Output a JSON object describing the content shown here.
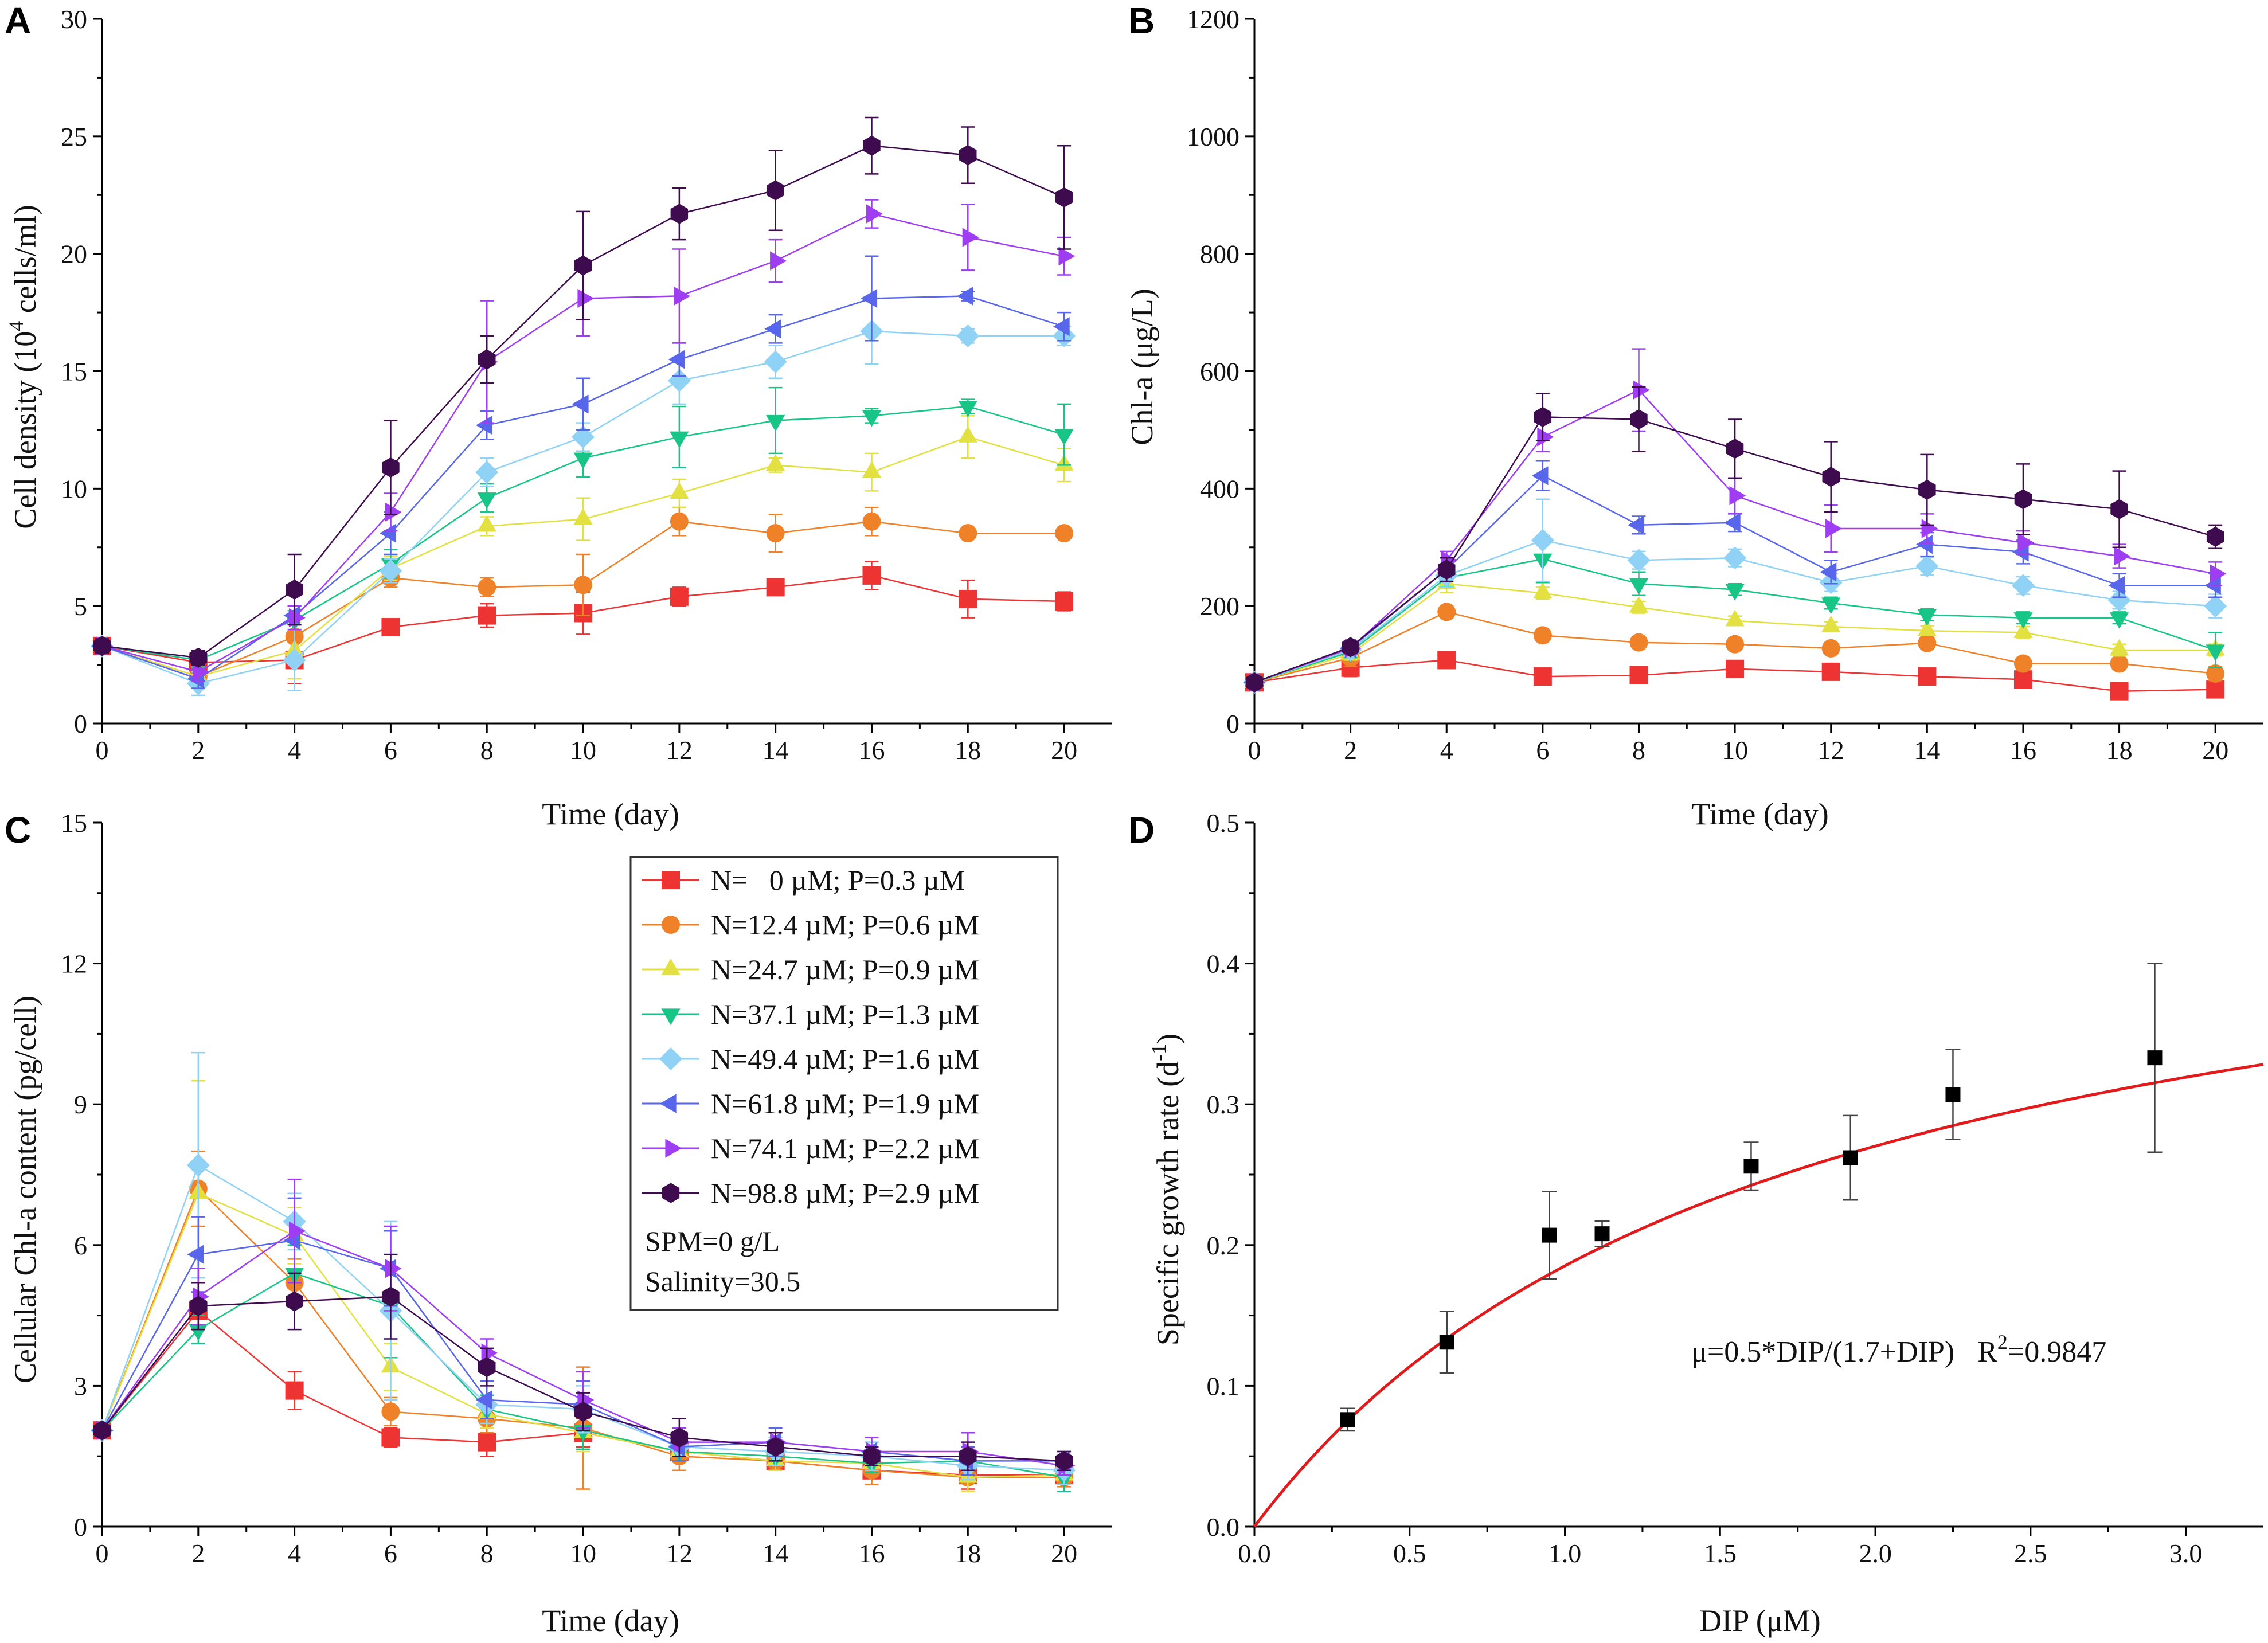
{
  "figure": {
    "series_styles": [
      {
        "name": "N=   0 µM; P=0.3 µM",
        "color": "#ee3333",
        "marker": "square"
      },
      {
        "name": "N=12.4 µM; P=0.6 µM",
        "color": "#ef8128",
        "marker": "circle"
      },
      {
        "name": "N=24.7 µM; P=0.9 µM",
        "color": "#e3e042",
        "marker": "triangle-up"
      },
      {
        "name": "N=37.1 µM; P=1.3 µM",
        "color": "#17c687",
        "marker": "triangle-down"
      },
      {
        "name": "N=49.4 µM; P=1.6 µM",
        "color": "#8fd2f6",
        "marker": "diamond"
      },
      {
        "name": "N=61.8 µM; P=1.9 µM",
        "color": "#5766ea",
        "marker": "triangle-left"
      },
      {
        "name": "N=74.1 µM; P=2.2 µM",
        "color": "#9e3df2",
        "marker": "triangle-right"
      },
      {
        "name": "N=98.8 µM; P=2.9 µM",
        "color": "#3d0b4e",
        "marker": "hexagon"
      }
    ],
    "legend_notes": [
      "SPM=0 g/L",
      "Salinity=30.5"
    ]
  },
  "chart_data": [
    {
      "panel": "A",
      "type": "line",
      "xlabel": "Time (day)",
      "ylabel_main": "Cell density (10",
      "ylabel_sup": "4",
      "ylabel_tail": " cells/ml)",
      "xlim": [
        0,
        21
      ],
      "ylim": [
        0,
        30
      ],
      "xticks": [
        0,
        2,
        4,
        6,
        8,
        10,
        12,
        14,
        16,
        18,
        20
      ],
      "yticks": [
        0,
        5,
        10,
        15,
        20,
        25,
        30
      ],
      "x": [
        0,
        2,
        4,
        6,
        8,
        10,
        12,
        14,
        16,
        18,
        20
      ],
      "series": [
        {
          "values": [
            3.3,
            2.6,
            2.7,
            4.1,
            4.6,
            4.7,
            5.4,
            5.8,
            6.3,
            5.3,
            5.2
          ],
          "errors": [
            0.3,
            0.3,
            1.0,
            0.3,
            0.5,
            0.9,
            0.4,
            0.2,
            0.6,
            0.8,
            0.4
          ]
        },
        {
          "values": [
            3.3,
            2.0,
            3.7,
            6.2,
            5.8,
            5.9,
            8.6,
            8.1,
            8.6,
            8.1,
            8.1
          ],
          "errors": [
            0.3,
            0.4,
            0.8,
            0.4,
            0.4,
            1.3,
            0.6,
            0.8,
            0.6,
            0.2,
            0.2
          ]
        },
        {
          "values": [
            3.3,
            2.0,
            3.1,
            6.6,
            8.4,
            8.7,
            9.8,
            11.0,
            10.7,
            12.2,
            11.0
          ],
          "errors": [
            0.3,
            0.4,
            1.2,
            0.5,
            0.4,
            0.9,
            0.6,
            0.3,
            0.8,
            0.9,
            0.7
          ]
        },
        {
          "values": [
            3.3,
            2.7,
            4.4,
            6.8,
            9.6,
            11.3,
            12.2,
            12.9,
            13.1,
            13.5,
            12.3
          ],
          "errors": [
            0.3,
            0.3,
            0.4,
            0.6,
            0.6,
            0.8,
            1.3,
            1.4,
            0.3,
            0.3,
            1.3
          ]
        },
        {
          "values": [
            3.3,
            1.7,
            2.7,
            6.5,
            10.7,
            12.2,
            14.6,
            15.4,
            16.7,
            16.5,
            16.5
          ],
          "errors": [
            0.3,
            0.5,
            1.3,
            0.5,
            0.6,
            0.6,
            1.0,
            0.7,
            1.4,
            0.3,
            0.4
          ]
        },
        {
          "values": [
            3.3,
            1.9,
            4.6,
            8.1,
            12.7,
            13.6,
            15.5,
            16.8,
            18.1,
            18.2,
            16.9
          ],
          "errors": [
            0.3,
            0.4,
            0.4,
            0.9,
            0.6,
            1.1,
            0.7,
            0.6,
            1.8,
            0.2,
            0.6
          ]
        },
        {
          "values": [
            3.3,
            2.2,
            4.5,
            9.0,
            15.4,
            18.1,
            18.2,
            19.7,
            21.7,
            20.7,
            19.9
          ],
          "errors": [
            0.3,
            0.4,
            0.5,
            0.8,
            2.6,
            1.6,
            2.0,
            0.9,
            0.6,
            1.4,
            0.8
          ]
        },
        {
          "values": [
            3.3,
            2.8,
            5.7,
            10.9,
            15.5,
            19.5,
            21.7,
            22.7,
            24.6,
            24.2,
            22.4
          ],
          "errors": [
            0.3,
            0.3,
            1.5,
            2.0,
            1.0,
            2.3,
            1.1,
            1.7,
            1.2,
            1.2,
            2.2
          ]
        }
      ]
    },
    {
      "panel": "B",
      "type": "line",
      "xlabel": "Time (day)",
      "ylabel_main": "Chl-a (μg/L)",
      "ylabel_sup": "",
      "ylabel_tail": "",
      "xlim": [
        0,
        21
      ],
      "ylim": [
        0,
        1200
      ],
      "xticks": [
        0,
        2,
        4,
        6,
        8,
        10,
        12,
        14,
        16,
        18,
        20
      ],
      "yticks": [
        0,
        200,
        400,
        600,
        800,
        1000,
        1200
      ],
      "x": [
        0,
        2,
        4,
        6,
        8,
        10,
        12,
        14,
        16,
        18,
        20
      ],
      "series": [
        {
          "values": [
            70,
            95,
            108,
            80,
            82,
            93,
            88,
            80,
            75,
            55,
            58
          ],
          "errors": [
            8,
            15,
            8,
            5,
            5,
            8,
            8,
            5,
            10,
            10,
            8
          ]
        },
        {
          "values": [
            70,
            112,
            190,
            150,
            138,
            135,
            128,
            137,
            102,
            102,
            85
          ],
          "errors": [
            8,
            15,
            10,
            8,
            8,
            10,
            8,
            10,
            10,
            10,
            12
          ]
        },
        {
          "values": [
            70,
            118,
            238,
            222,
            198,
            175,
            165,
            158,
            155,
            125,
            125
          ],
          "errors": [
            8,
            10,
            15,
            10,
            10,
            8,
            8,
            8,
            10,
            10,
            10
          ]
        },
        {
          "values": [
            70,
            122,
            248,
            280,
            238,
            228,
            205,
            185,
            180,
            180,
            125
          ],
          "errors": [
            8,
            10,
            15,
            40,
            20,
            10,
            10,
            10,
            10,
            10,
            30
          ]
        },
        {
          "values": [
            70,
            125,
            252,
            312,
            278,
            282,
            240,
            268,
            235,
            210,
            200
          ],
          "errors": [
            8,
            10,
            20,
            70,
            15,
            15,
            15,
            15,
            15,
            15,
            20
          ]
        },
        {
          "values": [
            70,
            128,
            262,
            422,
            338,
            342,
            258,
            305,
            292,
            235,
            235
          ],
          "errors": [
            8,
            10,
            20,
            25,
            15,
            15,
            20,
            20,
            20,
            20,
            20
          ]
        },
        {
          "values": [
            70,
            128,
            278,
            488,
            568,
            388,
            332,
            332,
            308,
            285,
            255
          ],
          "errors": [
            8,
            10,
            15,
            25,
            70,
            30,
            40,
            25,
            20,
            20,
            20
          ]
        },
        {
          "values": [
            70,
            130,
            262,
            522,
            518,
            468,
            420,
            398,
            382,
            365,
            318
          ],
          "errors": [
            8,
            10,
            20,
            40,
            55,
            50,
            60,
            60,
            60,
            65,
            20
          ]
        }
      ]
    },
    {
      "panel": "C",
      "type": "line",
      "xlabel": "Time (day)",
      "ylabel_main": "Cellular Chl-a content (pg/cell)",
      "ylabel_sup": "",
      "ylabel_tail": "",
      "xlim": [
        0,
        21
      ],
      "ylim": [
        0,
        15
      ],
      "xticks": [
        0,
        2,
        4,
        6,
        8,
        10,
        12,
        14,
        16,
        18,
        20
      ],
      "yticks": [
        0,
        3,
        6,
        9,
        12,
        15
      ],
      "x": [
        0,
        2,
        4,
        6,
        8,
        10,
        12,
        14,
        16,
        18,
        20
      ],
      "series": [
        {
          "values": [
            2.05,
            4.6,
            2.9,
            1.9,
            1.8,
            2.0,
            1.6,
            1.4,
            1.2,
            1.1,
            1.1
          ],
          "errors": [
            0.1,
            0.4,
            0.4,
            0.2,
            0.3,
            0.3,
            0.2,
            0.2,
            0.3,
            0.3,
            0.2
          ]
        },
        {
          "values": [
            2.05,
            7.2,
            5.2,
            2.45,
            2.3,
            2.1,
            1.5,
            1.4,
            1.2,
            1.05,
            1.05
          ],
          "errors": [
            0.1,
            0.8,
            0.5,
            0.3,
            0.3,
            1.3,
            0.3,
            0.2,
            0.3,
            0.3,
            0.2
          ]
        },
        {
          "values": [
            2.05,
            7.1,
            6.2,
            3.4,
            2.4,
            2.0,
            1.6,
            1.4,
            1.35,
            1.05,
            1.1
          ],
          "errors": [
            0.1,
            2.4,
            0.6,
            0.5,
            0.3,
            0.4,
            0.2,
            0.2,
            0.2,
            0.3,
            0.2
          ]
        },
        {
          "values": [
            2.05,
            4.2,
            5.4,
            4.7,
            2.5,
            2.05,
            1.6,
            1.5,
            1.35,
            1.4,
            1.05
          ],
          "errors": [
            0.1,
            0.3,
            0.6,
            1.1,
            0.3,
            0.4,
            0.2,
            0.2,
            0.2,
            0.2,
            0.3
          ]
        },
        {
          "values": [
            2.05,
            7.7,
            6.5,
            4.6,
            2.6,
            2.5,
            1.7,
            1.6,
            1.5,
            1.3,
            1.2
          ],
          "errors": [
            0.1,
            2.4,
            0.6,
            1.9,
            0.4,
            0.5,
            0.3,
            0.3,
            0.3,
            0.3,
            0.3
          ]
        },
        {
          "values": [
            2.05,
            5.8,
            6.1,
            5.5,
            2.7,
            2.6,
            1.7,
            1.8,
            1.6,
            1.4,
            1.4
          ],
          "errors": [
            0.1,
            0.8,
            0.9,
            0.8,
            0.4,
            0.5,
            0.3,
            0.3,
            0.3,
            0.3,
            0.2
          ]
        },
        {
          "values": [
            2.05,
            4.9,
            6.3,
            5.5,
            3.7,
            2.7,
            1.8,
            1.8,
            1.6,
            1.6,
            1.3
          ],
          "errors": [
            0.1,
            0.6,
            1.1,
            0.9,
            0.3,
            0.6,
            0.3,
            0.2,
            0.3,
            0.4,
            0.2
          ]
        },
        {
          "values": [
            2.05,
            4.7,
            4.8,
            4.9,
            3.4,
            2.45,
            1.9,
            1.7,
            1.5,
            1.5,
            1.4
          ],
          "errors": [
            0.1,
            0.5,
            0.6,
            0.9,
            0.4,
            0.4,
            0.4,
            0.3,
            0.2,
            0.3,
            0.2
          ]
        }
      ]
    },
    {
      "panel": "D",
      "type": "scatter",
      "xlabel": "DIP (μM)",
      "ylabel_main": "Specific growth rate (d",
      "ylabel_sup": "-1",
      "ylabel_tail": ")",
      "xlim": [
        0,
        3.25
      ],
      "ylim": [
        0,
        0.5
      ],
      "xticks": [
        0,
        0.5,
        1.0,
        1.5,
        2.0,
        2.5,
        3.0
      ],
      "xtick_labels": [
        "0.0",
        "0.5",
        "1.0",
        "1.5",
        "2.0",
        "2.5",
        "3.0"
      ],
      "yticks": [
        0,
        0.1,
        0.2,
        0.3,
        0.4,
        0.5
      ],
      "ytick_labels": [
        "0.0",
        "0.1",
        "0.2",
        "0.3",
        "0.4",
        "0.5"
      ],
      "points": {
        "x": [
          0.3,
          0.62,
          0.95,
          1.12,
          1.6,
          1.92,
          2.25,
          2.9
        ],
        "y": [
          0.076,
          0.131,
          0.207,
          0.208,
          0.256,
          0.262,
          0.307,
          0.333
        ],
        "errors": [
          0.008,
          0.022,
          0.031,
          0.009,
          0.017,
          0.03,
          0.032,
          0.067
        ],
        "color": "#000000"
      },
      "fit": {
        "mu_max": 0.5,
        "ks": 1.7,
        "color": "#e31a1c"
      },
      "equation_text": "μ=0.5*DIP/(1.7+DIP)",
      "r2_main": "R",
      "r2_sup": "2",
      "r2_value": "=0.9847"
    }
  ]
}
